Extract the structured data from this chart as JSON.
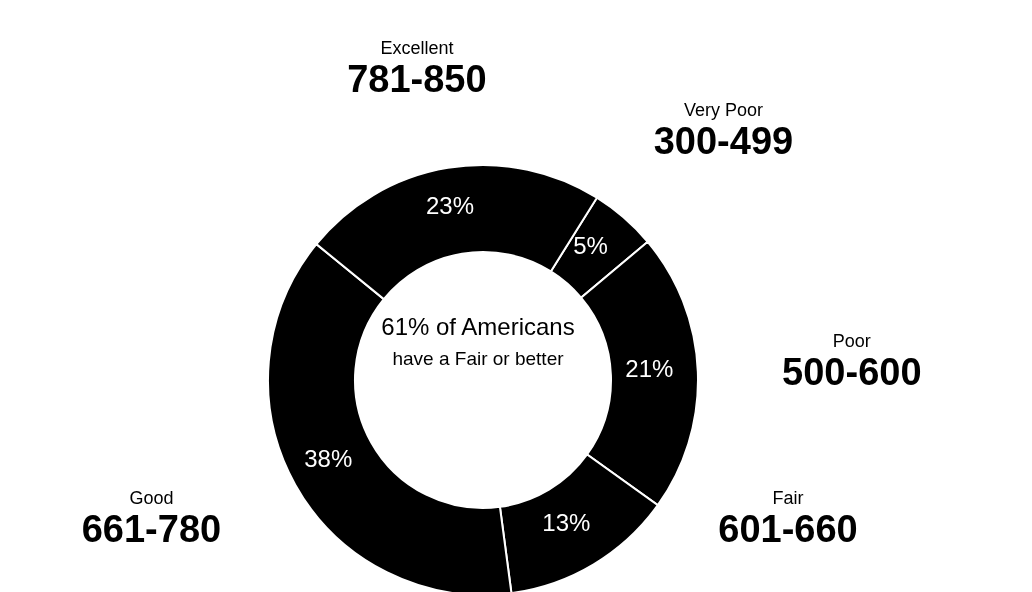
{
  "chart_data": {
    "type": "donut",
    "categories": [
      "Very Poor\n300-499",
      "Poor\n500-600",
      "Fair\n601-660",
      "Good\n661-780",
      "Excellent\n781-850"
    ],
    "values": [
      5,
      21,
      13,
      38,
      23
    ],
    "value_labels": [
      "5%",
      "21%",
      "13%",
      "38%",
      "23%"
    ],
    "colors": [
      "#000000",
      "#000000",
      "#000000",
      "#000000",
      "#000000"
    ],
    "annotations": [
      "61% of Americans",
      "have a Fair or better"
    ]
  }
}
